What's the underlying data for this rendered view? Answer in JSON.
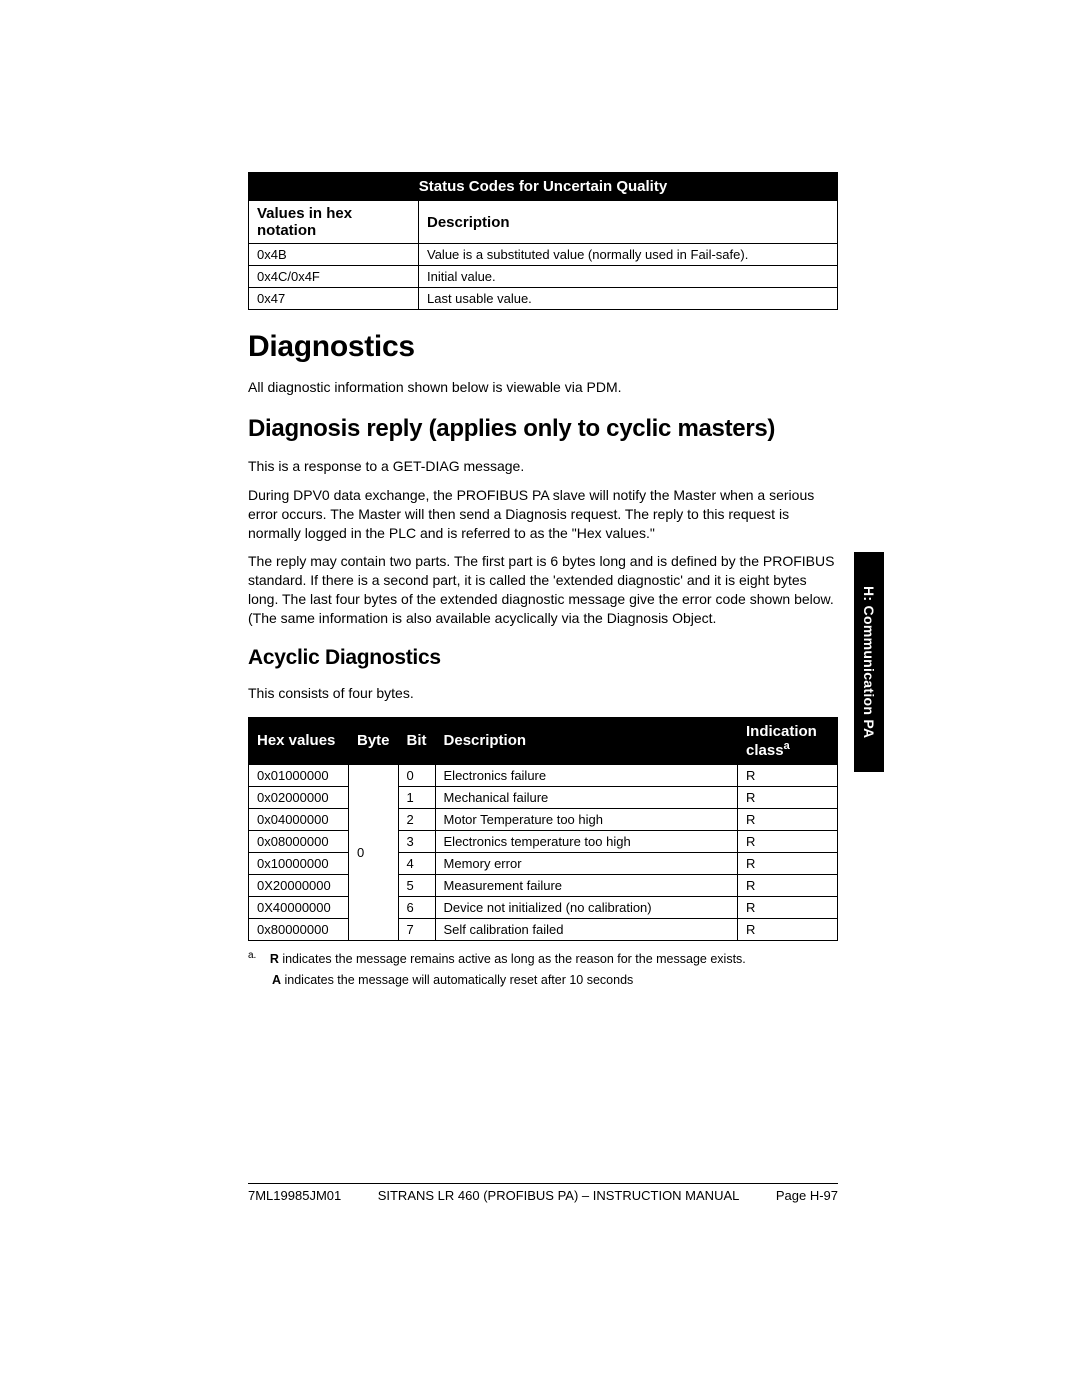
{
  "sideTab": "H: Communication PA",
  "table1": {
    "title": "Status Codes for Uncertain Quality",
    "col1": "Values in hex notation",
    "col2": "Description",
    "rows": [
      {
        "v": "0x4B",
        "d": "Value is a substituted value (normally used in Fail-safe)."
      },
      {
        "v": "0x4C/0x4F",
        "d": "Initial value."
      },
      {
        "v": "0x47",
        "d": "Last usable value."
      }
    ]
  },
  "h1": "Diagnostics",
  "p1": "All diagnostic information shown below is viewable via PDM.",
  "h2a": "Diagnosis reply (applies only to cyclic masters)",
  "p2": "This is a response to a GET-DIAG message.",
  "p3": "During DPV0 data exchange, the PROFIBUS PA slave will notify the Master when a serious error occurs. The Master will then send a Diagnosis request. The reply to this request is normally logged in the PLC and is referred to as the \"Hex values.\"",
  "p4": "The reply may contain two parts. The first part is 6 bytes long and is defined by the PROFIBUS standard. If there is a second part, it is called the 'extended diagnostic' and it is eight bytes long. The last four bytes of the extended diagnostic message give the error code shown below. (The same information is also available acyclically via the Diagnosis Object.",
  "h2b": "Acyclic Diagnostics",
  "p5": "This consists of four bytes.",
  "table2": {
    "colHex": "Hex values",
    "colByte": "Byte",
    "colBit": "Bit",
    "colDesc": "Description",
    "colIndLine1": "Indication",
    "colIndLine2": "class",
    "byteVal": "0",
    "rows": [
      {
        "h": "0x01000000",
        "b": "0",
        "d": "Electronics failure",
        "i": "R"
      },
      {
        "h": "0x02000000",
        "b": "1",
        "d": "Mechanical failure",
        "i": "R"
      },
      {
        "h": "0x04000000",
        "b": "2",
        "d": "Motor Temperature too high",
        "i": "R"
      },
      {
        "h": "0x08000000",
        "b": "3",
        "d": "Electronics temperature too high",
        "i": "R"
      },
      {
        "h": "0x10000000",
        "b": "4",
        "d": "Memory error",
        "i": "R"
      },
      {
        "h": "0X20000000",
        "b": "5",
        "d": "Measurement failure",
        "i": "R"
      },
      {
        "h": "0X40000000",
        "b": "6",
        "d": "Device not initialized (no calibration)",
        "i": "R"
      },
      {
        "h": "0x80000000",
        "b": "7",
        "d": "Self calibration failed",
        "i": "R"
      }
    ]
  },
  "fnMarker": "a.",
  "fn1a": "R",
  "fn1b": " indicates the message remains active as long as the reason for the message exists.",
  "fn2a": "A",
  "fn2b": " indicates the message will automatically reset after 10 seconds",
  "footer": {
    "left": "7ML19985JM01",
    "mid": "SITRANS LR 460 (PROFIBUS PA) – INSTRUCTION MANUAL",
    "right": "Page H-97"
  }
}
